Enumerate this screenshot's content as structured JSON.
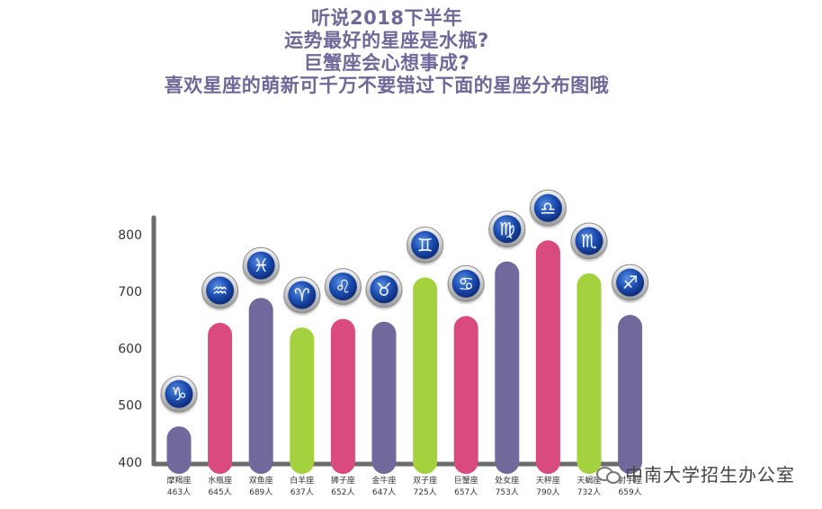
{
  "title_lines": [
    "听说2018下半年",
    "运势最好的星座是水瓶?",
    "巨蟹座会心想事成?",
    "喜欢星座的萌新可千万不要错过下面的星座分布图哦"
  ],
  "watermark": "中南大学招生办公室",
  "chart_data": {
    "type": "bar",
    "title": "",
    "xlabel": "",
    "ylabel": "",
    "ylim": [
      400,
      830
    ],
    "yticks": [
      400,
      500,
      600,
      700,
      800
    ],
    "grid": false,
    "categories": [
      "摩羯座",
      "水瓶座",
      "双鱼座",
      "白羊座",
      "狮子座",
      "金牛座",
      "双子座",
      "巨蟹座",
      "处女座",
      "天秤座",
      "天蝎座",
      "射手座"
    ],
    "count_labels": [
      "463人",
      "645人",
      "689人",
      "637人",
      "652人",
      "647人",
      "725人",
      "657人",
      "753人",
      "790人",
      "732人",
      "659人"
    ],
    "values": [
      463,
      645,
      689,
      637,
      652,
      647,
      725,
      657,
      753,
      790,
      732,
      659
    ],
    "bar_colors": [
      "#706a9c",
      "#d94a7e",
      "#706a9c",
      "#a4d23f",
      "#d94a7e",
      "#706a9c",
      "#a4d23f",
      "#d94a7e",
      "#706a9c",
      "#d94a7e",
      "#a4d23f",
      "#706a9c"
    ],
    "sign_icons": [
      "capricorn-icon",
      "aquarius-icon",
      "pisces-icon",
      "aries-icon",
      "leo-icon",
      "taurus-icon",
      "gemini-icon",
      "cancer-icon",
      "virgo-icon",
      "libra-icon",
      "scorpio-icon",
      "sagittarius-icon"
    ],
    "sign_glyphs": [
      "♑",
      "♒",
      "♓",
      "♈",
      "♌",
      "♉",
      "♊",
      "♋",
      "♍",
      "♎",
      "♏",
      "♐"
    ]
  }
}
